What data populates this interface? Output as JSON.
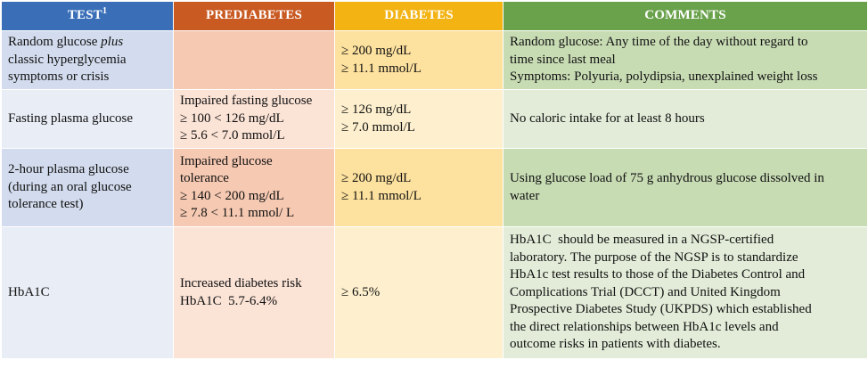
{
  "header": {
    "test": "TEST",
    "test_footnote": "1",
    "prediabetes": "PREDIABETES",
    "diabetes": "DIABETES",
    "comments": "COMMENTS"
  },
  "rows": [
    {
      "test_part1": "Random glucose",
      "test_italic": "plus",
      "test_part2": "classic hyperglycemia",
      "test_part3": "symptoms or crisis",
      "prediabetes": [],
      "diabetes": [
        "≥ 200 mg/dL",
        "≥ 11.1 mmol/L"
      ],
      "comments": [
        "Random glucose: Any time of the day without regard to",
        "time since last meal",
        "Symptoms: Polyuria, polydipsia, unexplained weight loss"
      ]
    },
    {
      "test": [
        "Fasting plasma glucose"
      ],
      "prediabetes": [
        "Impaired fasting glucose",
        "≥ 100 < 126 mg/dL",
        "≥ 5.6 < 7.0 mmol/L"
      ],
      "diabetes": [
        "≥ 126 mg/dL",
        "≥ 7.0 mmol/L"
      ],
      "comments": [
        "No caloric intake for at least 8 hours"
      ]
    },
    {
      "test": [
        "2-hour plasma glucose",
        "(during an oral glucose",
        "tolerance test)"
      ],
      "prediabetes": [
        "Impaired glucose",
        "tolerance",
        "≥ 140 < 200 mg/dL",
        "≥ 7.8 < 11.1 mmol/ L"
      ],
      "diabetes": [
        "≥ 200 mg/dL",
        "≥ 11.1 mmol/L"
      ],
      "comments": [
        "Using glucose load of 75 g anhydrous glucose dissolved in",
        "water"
      ]
    },
    {
      "test": [
        "HbA1C"
      ],
      "prediabetes": [
        "Increased diabetes risk",
        "HbA1C  5.7-6.4%"
      ],
      "diabetes": [
        "≥ 6.5%"
      ],
      "comments": [
        "HbA1C  should be measured in a NGSP-certified",
        "laboratory. The purpose of the NGSP is to standardize",
        "HbA1c test results to those of the Diabetes Control and",
        "Complications Trial (DCCT) and United Kingdom",
        "Prospective Diabetes Study (UKPDS) which established",
        "the direct relationships between HbA1c levels and",
        "outcome risks in patients with diabetes."
      ]
    }
  ]
}
